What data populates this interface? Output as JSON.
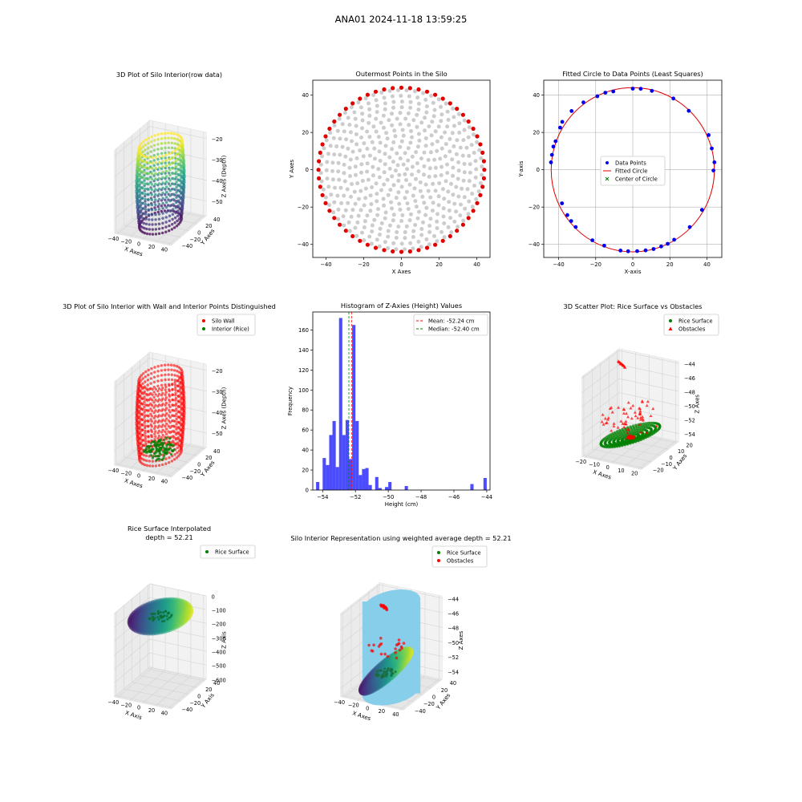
{
  "suptitle": "ANA01 2024-11-18 13:59:25",
  "chart_data": [
    {
      "id": "p1",
      "type": "scatter3d",
      "title": "3D Plot of Silo Interior(row data)",
      "xlabel": "X Axes",
      "ylabel": "Y Axes",
      "zlabel": "Z Axes (Depth)",
      "xticks": [
        -40,
        -20,
        0,
        20,
        40
      ],
      "yticks": [
        40,
        20,
        0,
        -20,
        -40
      ],
      "zticks": [
        -20,
        -30,
        -40,
        -50
      ],
      "colormap": "viridis"
    },
    {
      "id": "p2",
      "type": "scatter",
      "title": "Outermost Points in the Silo",
      "xlabel": "X Axes",
      "ylabel": "Y Axes",
      "xlim": [
        -47,
        47
      ],
      "ylim": [
        -47,
        48
      ],
      "xticks": [
        -40,
        -20,
        0,
        20,
        40
      ],
      "yticks": [
        -40,
        -20,
        0,
        20,
        40
      ],
      "grid": false,
      "colors": {
        "interior": "#cccccc",
        "outer": "#e00000"
      },
      "outer_radius": 44,
      "rings": 14,
      "spokes": 60,
      "outer_angles_deg": [
        0,
        6,
        12,
        18,
        24,
        30,
        36,
        42,
        48,
        54,
        60,
        66,
        72,
        78,
        84,
        90,
        96,
        102,
        108,
        114,
        120,
        126,
        132,
        138,
        144,
        150,
        156,
        162,
        168,
        174,
        180,
        186,
        192,
        198,
        204,
        210,
        216,
        222,
        228,
        234,
        240,
        246,
        252,
        258,
        264,
        270,
        276,
        282,
        288,
        294,
        300,
        306,
        312,
        318,
        324,
        330,
        336,
        342,
        348,
        354
      ]
    },
    {
      "id": "p3",
      "type": "scatter",
      "title": "Fitted Circle to Data Points (Least Squares)",
      "xlabel": "X-axis",
      "ylabel": "Y-axis",
      "xlim": [
        -48,
        48
      ],
      "ylim": [
        -47,
        48
      ],
      "xticks": [
        -40,
        -20,
        0,
        20,
        40
      ],
      "yticks": [
        -40,
        -20,
        0,
        20,
        40
      ],
      "grid": true,
      "legend": [
        "Data Points",
        "Fitted Circle",
        "Center of Circle"
      ],
      "legend_loc": "center",
      "colors": {
        "points": "#0000ee",
        "circle": "#e00000",
        "center": "#008000"
      },
      "circle": {
        "cx": 0,
        "cy": 0,
        "r": 44
      },
      "points": [
        [
          44,
          4
        ],
        [
          43.5,
          -0.4
        ],
        [
          42.6,
          11.4
        ],
        [
          40.9,
          18.6
        ],
        [
          37.3,
          -21.5
        ],
        [
          30.7,
          -30.7
        ],
        [
          30.2,
          31.6
        ],
        [
          22.3,
          -37.5
        ],
        [
          21.9,
          38.2
        ],
        [
          18.8,
          -39.7
        ],
        [
          15.3,
          -41.1
        ],
        [
          11.2,
          -42.5
        ],
        [
          10.3,
          42.3
        ],
        [
          6.9,
          -43.2
        ],
        [
          4.3,
          43.4
        ],
        [
          2.4,
          -43.6
        ],
        [
          0,
          43.5
        ],
        [
          -2.5,
          -43.7
        ],
        [
          -6.6,
          -43.3
        ],
        [
          -10.5,
          42
        ],
        [
          -14.8,
          41.3
        ],
        [
          -15.4,
          -40.7
        ],
        [
          -19.1,
          39.4
        ],
        [
          -21.8,
          -37.8
        ],
        [
          -26.6,
          36.1
        ],
        [
          -30.8,
          -30.7
        ],
        [
          -33,
          31.5
        ],
        [
          -33.2,
          -27.5
        ],
        [
          -35.3,
          -24.3
        ],
        [
          -38,
          25.7
        ],
        [
          -38.2,
          -18
        ],
        [
          -39.2,
          22.6
        ],
        [
          -41.6,
          15.3
        ],
        [
          -42.8,
          12.4
        ],
        [
          -43.6,
          8
        ],
        [
          -44.1,
          4
        ]
      ]
    },
    {
      "id": "p4",
      "type": "scatter3d",
      "title": "3D Plot of Silo Interior with Wall and Interior Points Distinguished",
      "xlabel": "X Axes",
      "ylabel": "Y Axes",
      "zlabel": "Z Axes (Depth)",
      "xticks": [
        -40,
        -20,
        0,
        20,
        40
      ],
      "yticks": [
        40,
        20,
        0,
        -20,
        -40
      ],
      "zticks": [
        -20,
        -30,
        -40,
        -50
      ],
      "legend": [
        "Silo Wall",
        "Interior (Rice)"
      ],
      "colors": {
        "wall": "#ff0000",
        "interior": "#008000"
      }
    },
    {
      "id": "p5",
      "type": "bar",
      "title": "Histogram of Z-Axies (Height) Values",
      "xlabel": "Height (cm)",
      "ylabel": "Frequency",
      "xlim": [
        -54.6,
        -43.8
      ],
      "ylim": [
        0,
        178
      ],
      "xticks": [
        -54,
        -52,
        -50,
        -48,
        -46,
        -44
      ],
      "yticks": [
        0,
        20,
        40,
        60,
        80,
        100,
        120,
        140,
        160
      ],
      "bin_width": 0.2,
      "bins": [
        [
          -54.4,
          8
        ],
        [
          -54.0,
          32
        ],
        [
          -53.8,
          25
        ],
        [
          -53.6,
          55
        ],
        [
          -53.4,
          69
        ],
        [
          -53.2,
          23
        ],
        [
          -53.0,
          172
        ],
        [
          -52.8,
          55
        ],
        [
          -52.6,
          70
        ],
        [
          -52.4,
          31
        ],
        [
          -52.2,
          165
        ],
        [
          -52.0,
          69
        ],
        [
          -51.8,
          15
        ],
        [
          -51.6,
          21
        ],
        [
          -51.4,
          22
        ],
        [
          -51.2,
          5
        ],
        [
          -50.8,
          13
        ],
        [
          -50.6,
          2
        ],
        [
          -50.2,
          3
        ],
        [
          -50.0,
          8
        ],
        [
          -49.0,
          4
        ],
        [
          -45.0,
          6
        ],
        [
          -44.2,
          12
        ]
      ],
      "color": "#0000ff",
      "mean": -52.24,
      "median": -52.4,
      "legend": [
        "Mean: -52.24 cm",
        "Median: -52.40 cm"
      ],
      "legend_loc": "upper right"
    },
    {
      "id": "p6",
      "type": "scatter3d",
      "title": "3D Scatter Plot: Rice Surface vs Obstacles",
      "xlabel": "X Axes",
      "ylabel": "Y Axes",
      "zlabel": "Z Axes",
      "xticks": [
        -20,
        -10,
        0,
        10,
        20
      ],
      "yticks": [
        20,
        10,
        0,
        -10,
        -20
      ],
      "zticks": [
        -44,
        -46,
        -48,
        -50,
        -52,
        -54
      ],
      "legend": [
        "Rice Surface",
        "Obstacles"
      ],
      "colors": {
        "rice": "#008000",
        "obstacle": "#ff0000"
      }
    },
    {
      "id": "p7",
      "type": "surface3d",
      "title": "Rice Surface Interpolated",
      "subtitle": "depth = 52.21",
      "xlabel": "X Axis",
      "ylabel": "Y Axis",
      "zlabel": "Z Axis",
      "xticks": [
        -40,
        -20,
        0,
        20,
        40
      ],
      "yticks": [
        40,
        20,
        0,
        -20,
        -40
      ],
      "zticks": [
        0,
        -100,
        -200,
        -300,
        -400,
        -500,
        -600
      ],
      "legend": [
        "Rice Surface"
      ],
      "colormap": "viridis"
    },
    {
      "id": "p8",
      "type": "surface3d",
      "title": "Silo Interior Representation using weighted average depth = 52.21",
      "xlabel": "X Axes",
      "ylabel": "Y Axes",
      "zlabel": "Z Axes",
      "xticks": [
        -40,
        -20,
        0,
        20,
        40
      ],
      "yticks": [
        40,
        20,
        0,
        -20,
        -40
      ],
      "zticks": [
        -44,
        -46,
        -48,
        -50,
        -52,
        -54
      ],
      "legend": [
        "Rice Surface",
        "Obstacles"
      ],
      "colors": {
        "rice": "#008000",
        "obstacle": "#ff0000",
        "cylinder": "#87ceeb"
      }
    }
  ]
}
